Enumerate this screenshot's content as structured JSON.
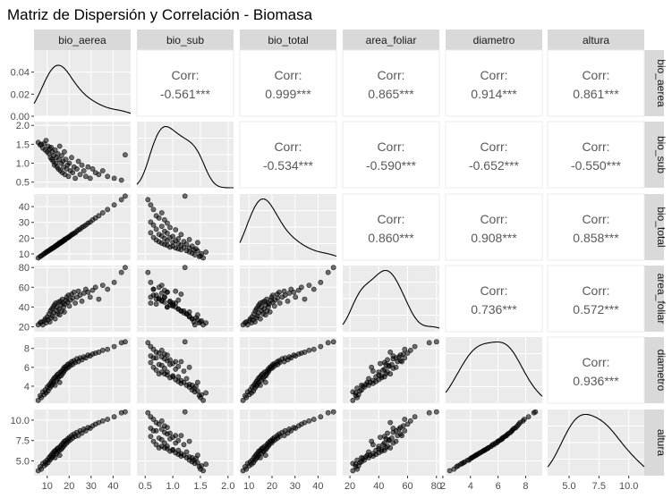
{
  "chart_data": {
    "type": "scatter",
    "title": "Matriz de Dispersión y Correlación - Biomasa",
    "variables": [
      "bio_aerea",
      "bio_sub",
      "bio_total",
      "area_foliar",
      "diametro",
      "altura"
    ],
    "corr_label": "Corr:",
    "correlations": [
      {
        "row": 0,
        "col": 1,
        "value": "-0.561***"
      },
      {
        "row": 0,
        "col": 2,
        "value": "0.999***"
      },
      {
        "row": 0,
        "col": 3,
        "value": "0.865***"
      },
      {
        "row": 0,
        "col": 4,
        "value": "0.914***"
      },
      {
        "row": 0,
        "col": 5,
        "value": "0.861***"
      },
      {
        "row": 1,
        "col": 2,
        "value": "-0.534***"
      },
      {
        "row": 1,
        "col": 3,
        "value": "-0.590***"
      },
      {
        "row": 1,
        "col": 4,
        "value": "-0.652***"
      },
      {
        "row": 1,
        "col": 5,
        "value": "-0.550***"
      },
      {
        "row": 2,
        "col": 3,
        "value": "0.860***"
      },
      {
        "row": 2,
        "col": 4,
        "value": "0.908***"
      },
      {
        "row": 2,
        "col": 5,
        "value": "0.858***"
      },
      {
        "row": 3,
        "col": 4,
        "value": "0.736***"
      },
      {
        "row": 3,
        "col": 5,
        "value": "0.572***"
      },
      {
        "row": 4,
        "col": 5,
        "value": "0.936***"
      }
    ],
    "ranges": [
      [
        4,
        48
      ],
      [
        0.35,
        2.1
      ],
      [
        6,
        48
      ],
      [
        15,
        82
      ],
      [
        2.2,
        9.2
      ],
      [
        3.2,
        11.3
      ]
    ],
    "x_ticks": [
      [
        10,
        20,
        30,
        40
      ],
      [
        0.5,
        1.0,
        1.5,
        2.0
      ],
      [
        10,
        20,
        30,
        40
      ],
      [
        20,
        40,
        60,
        80
      ],
      [
        2,
        4,
        6,
        8
      ],
      [
        5.0,
        7.5,
        10.0
      ]
    ],
    "x_tick_labels": [
      [
        "10",
        "20",
        "30",
        "40"
      ],
      [
        "0.5",
        "1.0",
        "1.5",
        "2.0"
      ],
      [
        "10",
        "20",
        "30",
        "40"
      ],
      [
        "20",
        "40",
        "60",
        "80"
      ],
      [
        "2",
        "4",
        "6",
        "8"
      ],
      [
        "5.0",
        "7.5",
        "10.0"
      ]
    ],
    "y_ticks": [
      [
        0.0,
        0.02,
        0.04
      ],
      [
        0.5,
        1.0,
        1.5,
        2.0
      ],
      [
        10,
        20,
        30,
        40
      ],
      [
        20,
        40,
        60,
        80
      ],
      [
        4,
        6,
        8
      ],
      [
        5.0,
        7.5,
        10.0
      ]
    ],
    "y_tick_labels": [
      [
        "0.00",
        "0.02",
        "0.04"
      ],
      [
        "0.5",
        "1.0",
        "1.5",
        "2.0"
      ],
      [
        "10",
        "20",
        "30",
        "40"
      ],
      [
        "20",
        "40",
        "60",
        "80"
      ],
      [
        "4",
        "6",
        "8"
      ],
      [
        "5.0",
        "7.5",
        "10.0"
      ]
    ],
    "density_top_ylim": [
      0,
      0.06
    ],
    "samples": {
      "bio_aerea": [
        5.9,
        6.8,
        7.3,
        8.0,
        8.6,
        9.1,
        9.5,
        10.0,
        10.4,
        10.8,
        11.2,
        11.5,
        11.8,
        12.1,
        12.4,
        12.7,
        13.0,
        13.3,
        13.6,
        13.9,
        14.2,
        14.5,
        14.8,
        15.1,
        15.4,
        15.7,
        16.0,
        16.3,
        16.6,
        16.9,
        17.2,
        17.5,
        17.8,
        18.1,
        18.5,
        18.9,
        19.3,
        19.7,
        20.1,
        20.6,
        21.1,
        21.6,
        22.2,
        22.8,
        23.5,
        24.2,
        25.0,
        25.8,
        26.7,
        27.6,
        28.6,
        29.6,
        30.7,
        32.0,
        33.5,
        35.3,
        37.5,
        40.5,
        43.8,
        45.5
      ],
      "bio_sub": [
        1.55,
        1.48,
        1.5,
        1.4,
        1.52,
        1.35,
        1.6,
        1.3,
        1.45,
        1.25,
        1.38,
        1.15,
        1.42,
        1.1,
        1.3,
        1.05,
        1.2,
        0.95,
        1.35,
        1.0,
        1.15,
        0.9,
        1.25,
        0.85,
        1.1,
        1.45,
        0.8,
        1.0,
        1.2,
        0.75,
        1.05,
        0.9,
        1.3,
        0.7,
        1.1,
        0.85,
        0.95,
        0.65,
        1.0,
        0.8,
        1.15,
        0.75,
        0.9,
        0.6,
        0.85,
        1.05,
        0.7,
        0.95,
        0.8,
        0.65,
        0.9,
        0.6,
        0.85,
        0.75,
        0.7,
        0.8,
        0.65,
        0.6,
        0.55,
        1.22
      ],
      "bio_total": [
        7.4,
        8.3,
        8.8,
        9.4,
        10.1,
        10.5,
        11.1,
        11.3,
        11.9,
        12.1,
        12.6,
        12.7,
        13.2,
        13.2,
        13.7,
        13.8,
        14.2,
        14.3,
        14.9,
        14.9,
        15.4,
        15.4,
        16.1,
        16.0,
        16.5,
        17.2,
        16.8,
        17.3,
        17.8,
        17.7,
        18.3,
        18.4,
        19.1,
        18.8,
        19.6,
        19.8,
        20.3,
        20.4,
        21.1,
        21.4,
        22.3,
        22.4,
        23.1,
        23.4,
        24.4,
        25.3,
        25.7,
        26.8,
        27.5,
        28.3,
        29.5,
        30.2,
        31.6,
        32.8,
        34.2,
        36.1,
        38.2,
        41.1,
        44.4,
        46.7
      ],
      "area_foliar": [
        22,
        24,
        25,
        22,
        26,
        28,
        24,
        30,
        27,
        33,
        25,
        36,
        29,
        38,
        31,
        40,
        34,
        42,
        28,
        44,
        36,
        40,
        33,
        45,
        38,
        32,
        46,
        42,
        36,
        48,
        44,
        40,
        35,
        43,
        47,
        50,
        45,
        52,
        41,
        47,
        53,
        49,
        55,
        44,
        50,
        56,
        52,
        46,
        54,
        58,
        55,
        50,
        57,
        60,
        48,
        62,
        58,
        65,
        75,
        80
      ],
      "diametro": [
        2.5,
        3.0,
        2.8,
        3.4,
        3.1,
        3.6,
        3.3,
        3.9,
        3.5,
        4.1,
        3.8,
        4.3,
        4.0,
        4.5,
        4.2,
        4.7,
        4.4,
        4.9,
        4.1,
        5.0,
        4.6,
        5.2,
        4.8,
        5.3,
        5.0,
        4.4,
        5.5,
        5.1,
        5.6,
        5.3,
        5.8,
        5.5,
        6.0,
        5.7,
        6.1,
        5.9,
        6.3,
        6.0,
        6.4,
        6.2,
        6.6,
        6.3,
        6.7,
        6.5,
        6.9,
        6.6,
        7.0,
        6.8,
        7.1,
        7.0,
        7.3,
        7.2,
        7.4,
        7.5,
        7.6,
        7.8,
        7.9,
        8.2,
        8.6,
        8.7
      ],
      "altura": [
        3.8,
        4.3,
        4.0,
        4.7,
        4.4,
        4.9,
        4.6,
        5.1,
        4.8,
        5.4,
        5.1,
        5.6,
        5.3,
        5.8,
        5.5,
        6.0,
        5.7,
        6.2,
        5.4,
        6.3,
        5.9,
        6.5,
        6.1,
        6.6,
        6.3,
        5.7,
        6.8,
        6.4,
        7.0,
        6.6,
        7.2,
        6.8,
        7.4,
        7.0,
        7.5,
        7.2,
        7.7,
        7.4,
        7.9,
        7.6,
        8.1,
        7.8,
        8.3,
        8.0,
        8.5,
        8.1,
        8.7,
        8.4,
        8.9,
        8.7,
        9.1,
        9.0,
        9.3,
        9.5,
        9.7,
        9.9,
        10.1,
        10.4,
        10.9,
        11.0
      ]
    }
  }
}
